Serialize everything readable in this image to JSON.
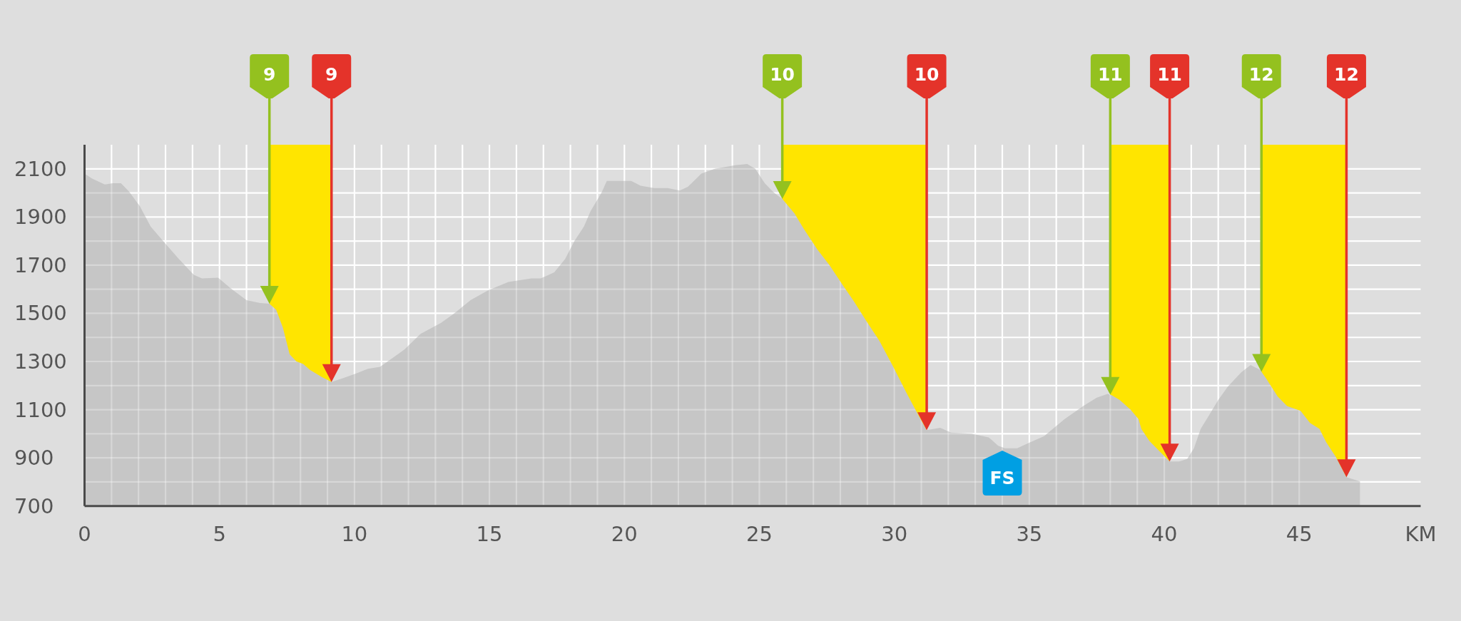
{
  "chart_data": {
    "type": "area",
    "xlabel": "KM",
    "color": "#c6c6c6",
    "x": [
      0,
      0.27,
      0.75,
      1.05,
      1.35,
      1.65,
      2.05,
      2.45,
      2.95,
      3.5,
      4.05,
      4.35,
      4.95,
      5.4,
      6.0,
      6.5,
      6.85,
      7.1,
      7.35,
      7.6,
      7.85,
      8.1,
      8.35,
      8.8,
      9.15,
      9.55,
      10.05,
      10.5,
      10.95,
      11.35,
      11.85,
      12.45,
      13.2,
      13.7,
      14.3,
      14.95,
      15.7,
      16.55,
      16.9,
      17.4,
      17.8,
      18.15,
      18.5,
      18.75,
      19.15,
      19.35,
      20.25,
      20.6,
      21.1,
      21.6,
      22.05,
      22.35,
      22.85,
      23.35,
      23.85,
      24.1,
      24.55,
      24.85,
      25.2,
      25.55,
      25.85,
      26.3,
      26.65,
      27.15,
      27.6,
      28.1,
      28.5,
      28.95,
      29.45,
      29.95,
      30.45,
      30.9,
      31.2,
      31.7,
      32.1,
      32.85,
      33.5,
      33.85,
      34.1,
      34.55,
      34.95,
      35.55,
      36.3,
      37.0,
      37.5,
      37.9,
      38.05,
      38.35,
      38.75,
      39.05,
      39.15,
      39.45,
      39.8,
      40.2,
      40.55,
      40.85,
      41.1,
      41.35,
      41.65,
      42.0,
      42.35,
      42.85,
      43.2,
      43.55,
      43.8,
      44.2,
      44.55,
      45.05,
      45.4,
      45.75,
      46.0,
      46.35,
      46.75,
      47.25
    ],
    "values": [
      2080,
      2060,
      2035,
      2040,
      2040,
      2005,
      1945,
      1860,
      1795,
      1725,
      1660,
      1645,
      1648,
      1605,
      1555,
      1543,
      1540,
      1515,
      1440,
      1330,
      1300,
      1290,
      1265,
      1235,
      1215,
      1230,
      1250,
      1270,
      1278,
      1310,
      1350,
      1415,
      1460,
      1500,
      1555,
      1595,
      1630,
      1645,
      1645,
      1670,
      1725,
      1800,
      1860,
      1925,
      2000,
      2050,
      2050,
      2030,
      2020,
      2020,
      2010,
      2025,
      2080,
      2100,
      2110,
      2115,
      2120,
      2100,
      2040,
      2000,
      1975,
      1915,
      1850,
      1765,
      1700,
      1615,
      1550,
      1470,
      1385,
      1280,
      1170,
      1075,
      1015,
      1025,
      1005,
      1000,
      985,
      950,
      940,
      940,
      960,
      990,
      1060,
      1115,
      1150,
      1165,
      1160,
      1140,
      1100,
      1060,
      1020,
      970,
      930,
      885,
      885,
      895,
      940,
      1020,
      1075,
      1140,
      1195,
      1255,
      1285,
      1265,
      1225,
      1155,
      1115,
      1095,
      1045,
      1020,
      965,
      905,
      820,
      802
    ],
    "xlim": [
      0,
      49.5
    ],
    "ylim": [
      700,
      2200
    ],
    "xticks": [
      0,
      {
        "value": 1,
        "label": null
      },
      {
        "value": 2,
        "label": null
      },
      {
        "value": 3,
        "label": null
      },
      {
        "value": 4,
        "label": null
      },
      5,
      {
        "value": 6,
        "label": null
      },
      {
        "value": 7,
        "label": null
      },
      {
        "value": 8,
        "label": null
      },
      {
        "value": 9,
        "label": null
      },
      10,
      {
        "value": 11,
        "label": null
      },
      {
        "value": 12,
        "label": null
      },
      {
        "value": 13,
        "label": null
      },
      {
        "value": 14,
        "label": null
      },
      15,
      {
        "value": 16,
        "label": null
      },
      {
        "value": 17,
        "label": null
      },
      {
        "value": 18,
        "label": null
      },
      {
        "value": 19,
        "label": null
      },
      20,
      {
        "value": 21,
        "label": null
      },
      {
        "value": 22,
        "label": null
      },
      {
        "value": 23,
        "label": null
      },
      {
        "value": 24,
        "label": null
      },
      25,
      {
        "value": 26,
        "label": null
      },
      {
        "value": 27,
        "label": null
      },
      {
        "value": 28,
        "label": null
      },
      {
        "value": 29,
        "label": null
      },
      30,
      {
        "value": 31,
        "label": null
      },
      {
        "value": 32,
        "label": null
      },
      {
        "value": 33,
        "label": null
      },
      {
        "value": 34,
        "label": null
      },
      35,
      {
        "value": 36,
        "label": null
      },
      {
        "value": 37,
        "label": null
      },
      {
        "value": 38,
        "label": null
      },
      {
        "value": 39,
        "label": null
      },
      40,
      {
        "value": 41,
        "label": null
      },
      {
        "value": 42,
        "label": null
      },
      {
        "value": 43,
        "label": null
      },
      {
        "value": 44,
        "label": null
      },
      45
    ],
    "yticks": [
      700,
      {
        "value": 800,
        "label": null
      },
      900,
      {
        "value": 1000,
        "label": null
      },
      1100,
      {
        "value": 1200,
        "label": null
      },
      1300,
      {
        "value": 1400,
        "label": null
      },
      1500,
      {
        "value": 1600,
        "label": null
      },
      1700,
      {
        "value": 1800,
        "label": null
      },
      1900,
      {
        "value": 2000,
        "label": null
      },
      2100
    ],
    "grid": true,
    "bands": [
      {
        "axis": "x",
        "from": 6.85,
        "to": 9.15,
        "color": "#ffe500"
      },
      {
        "axis": "x",
        "from": 25.85,
        "to": 31.2,
        "color": "#ffe500"
      },
      {
        "axis": "x",
        "from": 38.0,
        "to": 40.2,
        "color": "#ffe500"
      },
      {
        "axis": "x",
        "from": 43.6,
        "to": 46.75,
        "color": "#ffe500"
      }
    ],
    "ref_lines": [
      {
        "axis": "x",
        "value": 6.85,
        "color": "#94c11f"
      },
      {
        "axis": "x",
        "value": 9.15,
        "color": "#e4332a"
      },
      {
        "axis": "x",
        "value": 25.85,
        "color": "#94c11f"
      },
      {
        "axis": "x",
        "value": 31.2,
        "color": "#e4332a"
      },
      {
        "axis": "x",
        "value": 38.0,
        "color": "#94c11f"
      },
      {
        "axis": "x",
        "value": 40.2,
        "color": "#e4332a"
      },
      {
        "axis": "x",
        "value": 43.6,
        "color": "#94c11f"
      },
      {
        "axis": "x",
        "value": 46.75,
        "color": "#e4332a"
      }
    ],
    "annotations": [
      "9",
      "9",
      "10",
      "10",
      "11",
      "11",
      "12",
      "12",
      {
        "text": "FS",
        "x": 34.0,
        "y": 930
      }
    ]
  }
}
